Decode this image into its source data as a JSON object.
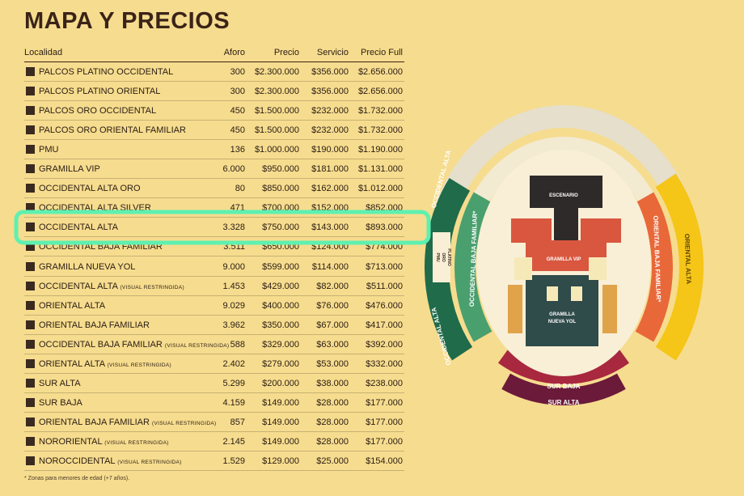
{
  "title": "MAPA Y PRECIOS",
  "columns": [
    "Localidad",
    "Aforo",
    "Precio",
    "Servicio",
    "Precio Full"
  ],
  "rows": [
    {
      "name": "PALCOS PLATINO OCCIDENTAL",
      "cells": [
        "300",
        "$2.300.000",
        "$356.000",
        "$2.656.000"
      ]
    },
    {
      "name": "PALCOS PLATINO ORIENTAL",
      "cells": [
        "300",
        "$2.300.000",
        "$356.000",
        "$2.656.000"
      ]
    },
    {
      "name": "PALCOS ORO OCCIDENTAL",
      "cells": [
        "450",
        "$1.500.000",
        "$232.000",
        "$1.732.000"
      ]
    },
    {
      "name": "PALCOS ORO ORIENTAL FAMILIAR",
      "cells": [
        "450",
        "$1.500.000",
        "$232.000",
        "$1.732.000"
      ]
    },
    {
      "name": "PMU",
      "cells": [
        "136",
        "$1.000.000",
        "$190.000",
        "$1.190.000"
      ]
    },
    {
      "name": "GRAMILLA VIP",
      "cells": [
        "6.000",
        "$950.000",
        "$181.000",
        "$1.131.000"
      ]
    },
    {
      "name": "OCCIDENTAL ALTA ORO",
      "cells": [
        "80",
        "$850.000",
        "$162.000",
        "$1.012.000"
      ]
    },
    {
      "name": "OCCIDENTAL ALTA SILVER",
      "cells": [
        "471",
        "$700.000",
        "$152.000",
        "$852.000"
      ]
    },
    {
      "name": "OCCIDENTAL ALTA",
      "cells": [
        "3.328",
        "$750.000",
        "$143.000",
        "$893.000"
      ]
    },
    {
      "name": "OCCIDENTAL BAJA FAMILIAR",
      "cells": [
        "3.511",
        "$650.000",
        "$124.000",
        "$774.000"
      ]
    },
    {
      "name": "GRAMILLA NUEVA YOL",
      "cells": [
        "9.000",
        "$599.000",
        "$114.000",
        "$713.000"
      ]
    },
    {
      "name": "OCCIDENTAL ALTA",
      "note": "(VISUAL RESTRINGIDA)",
      "cells": [
        "1.453",
        "$429.000",
        "$82.000",
        "$511.000"
      ]
    },
    {
      "name": "ORIENTAL ALTA",
      "cells": [
        "9.029",
        "$400.000",
        "$76.000",
        "$476.000"
      ]
    },
    {
      "name": "ORIENTAL BAJA FAMILIAR",
      "cells": [
        "3.962",
        "$350.000",
        "$67.000",
        "$417.000"
      ]
    },
    {
      "name": "OCCIDENTAL BAJA FAMILIAR",
      "note": "(VISUAL RESTRINGIDA)",
      "cells": [
        "588",
        "$329.000",
        "$63.000",
        "$392.000"
      ]
    },
    {
      "name": "ORIENTAL ALTA",
      "note": "(VISUAL RESTRINGIDA)",
      "cells": [
        "2.402",
        "$279.000",
        "$53.000",
        "$332.000"
      ]
    },
    {
      "name": "SUR ALTA",
      "cells": [
        "5.299",
        "$200.000",
        "$38.000",
        "$238.000"
      ]
    },
    {
      "name": "SUR BAJA",
      "cells": [
        "4.159",
        "$149.000",
        "$28.000",
        "$177.000"
      ]
    },
    {
      "name": "ORIENTAL BAJA FAMILIAR",
      "note": "(VISUAL RESTRINGIDA)",
      "cells": [
        "857",
        "$149.000",
        "$28.000",
        "$177.000"
      ]
    },
    {
      "name": "NORORIENTAL",
      "note": "(VISUAL RESTRINGIDA)",
      "cells": [
        "2.145",
        "$149.000",
        "$28.000",
        "$177.000"
      ]
    },
    {
      "name": "NOROCCIDENTAL",
      "note": "(VISUAL RESTRINGIDA)",
      "cells": [
        "1.529",
        "$129.000",
        "$25.000",
        "$154.000"
      ]
    }
  ],
  "footnote": "* Zonas para menores de edad (+7 años).",
  "map": {
    "stage": "ESCENARIO",
    "vip": "GRAMILLA VIP",
    "nueva_yol": [
      "GRAMILLA",
      "NUEVA YOL"
    ],
    "occ_alta_top": "OCCIDENTAL ALTA",
    "occ_alta_bottom": "OCCIDENTAL ALTA",
    "occ_baja": "OCCIDENTAL BAJA FAMILIAR*",
    "ori_baja": "ORIENTAL BAJA FAMILIAR*",
    "ori_alta": "ORIENTAL ALTA",
    "sur_baja": "SUR BAJA",
    "sur_alta": "SUR ALTA",
    "pmu": "PMU",
    "oro": "ORO",
    "platino": "PLATINO"
  }
}
